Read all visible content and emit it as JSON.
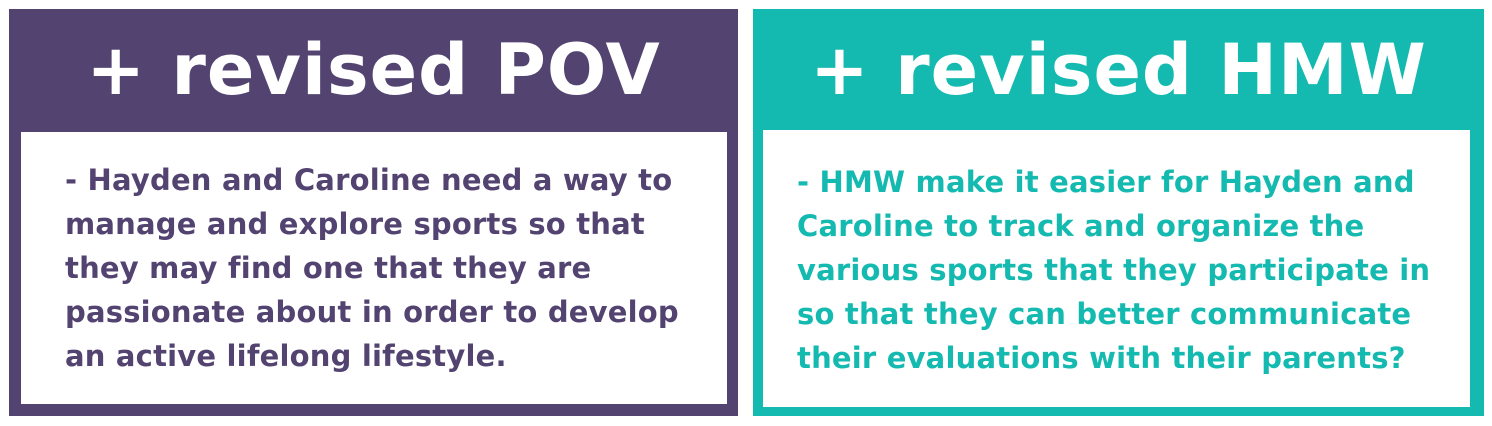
{
  "colors": {
    "pov_panel": "#524370",
    "hmw_panel": "#14b9b0",
    "body_background": "#ffffff",
    "title_text": "#ffffff"
  },
  "pov": {
    "title": "+ revised POV",
    "body": "- Hayden and Caroline need a way to manage and explore sports so that they may find one that they are passionate about in order to develop an active lifelong lifestyle."
  },
  "hmw": {
    "title": "+ revised HMW",
    "body": "- HMW make it easier for Hayden and Caroline to track and organize the various sports that they participate in so that they can better communicate their evaluations with their parents?"
  }
}
